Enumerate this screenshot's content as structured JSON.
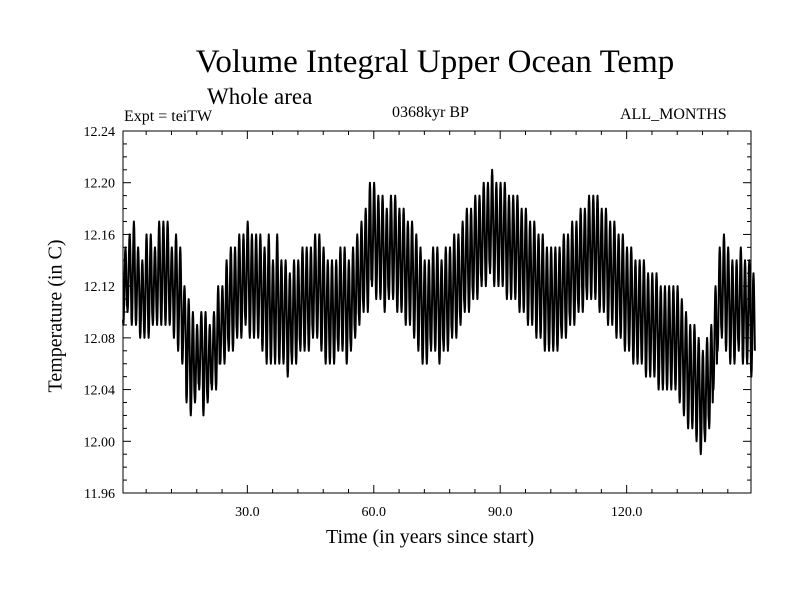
{
  "chart_data": {
    "type": "line",
    "title": "Volume Integral Upper Ocean Temp",
    "subtitle": "Whole area",
    "experiment": "Expt = teiTW",
    "period": "0368kyr BP",
    "months": "ALL_MONTHS",
    "xlabel": "Time (in years since start)",
    "ylabel": "Temperature (in C)",
    "xlim": [
      0.5,
      149.5
    ],
    "ylim": [
      11.96,
      12.24
    ],
    "x_ticks": [
      30,
      60,
      90,
      120
    ],
    "x_tick_labels": [
      "30.0",
      "60.0",
      "90.0",
      "120.0"
    ],
    "y_ticks": [
      11.96,
      12.0,
      12.04,
      12.08,
      12.12,
      12.16,
      12.2,
      12.24
    ],
    "y_tick_labels": [
      "11.96",
      "12.00",
      "12.04",
      "12.08",
      "12.12",
      "12.16",
      "12.20",
      "12.24"
    ],
    "grid": false,
    "series": [
      {
        "name": "Volume integral upper ocean temperature",
        "seasonal_sampling": "monthly",
        "annual_mean": [
          12.12,
          12.13,
          12.13,
          12.12,
          12.11,
          12.12,
          12.12,
          12.12,
          12.13,
          12.13,
          12.13,
          12.12,
          12.12,
          12.11,
          12.09,
          12.07,
          12.06,
          12.06,
          12.07,
          12.06,
          12.06,
          12.07,
          12.08,
          12.09,
          12.1,
          12.11,
          12.11,
          12.12,
          12.12,
          12.13,
          12.12,
          12.12,
          12.12,
          12.11,
          12.11,
          12.1,
          12.11,
          12.1,
          12.1,
          12.09,
          12.1,
          12.1,
          12.11,
          12.11,
          12.11,
          12.12,
          12.12,
          12.11,
          12.1,
          12.1,
          12.1,
          12.11,
          12.11,
          12.1,
          12.11,
          12.12,
          12.13,
          12.14,
          12.15,
          12.16,
          12.15,
          12.15,
          12.14,
          12.15,
          12.15,
          12.14,
          12.14,
          12.13,
          12.13,
          12.12,
          12.11,
          12.1,
          12.1,
          12.11,
          12.11,
          12.1,
          12.11,
          12.11,
          12.12,
          12.12,
          12.13,
          12.14,
          12.14,
          12.15,
          12.15,
          12.16,
          12.16,
          12.17,
          12.16,
          12.16,
          12.16,
          12.15,
          12.15,
          12.15,
          12.14,
          12.14,
          12.13,
          12.13,
          12.12,
          12.12,
          12.11,
          12.11,
          12.11,
          12.11,
          12.12,
          12.12,
          12.13,
          12.13,
          12.14,
          12.14,
          12.15,
          12.15,
          12.15,
          12.14,
          12.14,
          12.13,
          12.13,
          12.12,
          12.12,
          12.11,
          12.11,
          12.1,
          12.1,
          12.1,
          12.09,
          12.09,
          12.09,
          12.08,
          12.08,
          12.08,
          12.08,
          12.08,
          12.07,
          12.06,
          12.05,
          12.05,
          12.04,
          12.03,
          12.04,
          12.05,
          12.08,
          12.11,
          12.12,
          12.11,
          12.1,
          12.1,
          12.11,
          12.1,
          12.1,
          12.09
        ],
        "seasonal_amplitude": [
          0.03,
          0.03,
          0.04,
          0.03,
          0.03,
          0.04,
          0.04,
          0.03,
          0.04,
          0.04,
          0.04,
          0.03,
          0.04,
          0.04,
          0.03,
          0.04,
          0.04,
          0.03,
          0.03,
          0.04,
          0.03,
          0.03,
          0.04,
          0.03,
          0.04,
          0.04,
          0.04,
          0.04,
          0.04,
          0.04,
          0.04,
          0.04,
          0.04,
          0.04,
          0.05,
          0.04,
          0.05,
          0.04,
          0.04,
          0.04,
          0.04,
          0.04,
          0.04,
          0.04,
          0.04,
          0.04,
          0.04,
          0.04,
          0.04,
          0.04,
          0.04,
          0.04,
          0.04,
          0.04,
          0.04,
          0.04,
          0.04,
          0.04,
          0.05,
          0.04,
          0.04,
          0.04,
          0.04,
          0.04,
          0.04,
          0.04,
          0.04,
          0.04,
          0.04,
          0.04,
          0.04,
          0.04,
          0.04,
          0.04,
          0.04,
          0.04,
          0.04,
          0.04,
          0.04,
          0.04,
          0.04,
          0.04,
          0.04,
          0.04,
          0.04,
          0.04,
          0.04,
          0.04,
          0.04,
          0.04,
          0.04,
          0.04,
          0.04,
          0.04,
          0.04,
          0.04,
          0.04,
          0.04,
          0.04,
          0.04,
          0.04,
          0.04,
          0.04,
          0.04,
          0.04,
          0.04,
          0.04,
          0.04,
          0.04,
          0.04,
          0.04,
          0.04,
          0.04,
          0.04,
          0.04,
          0.04,
          0.04,
          0.04,
          0.04,
          0.04,
          0.04,
          0.04,
          0.04,
          0.04,
          0.04,
          0.04,
          0.04,
          0.04,
          0.04,
          0.04,
          0.04,
          0.04,
          0.04,
          0.04,
          0.04,
          0.04,
          0.04,
          0.04,
          0.04,
          0.04,
          0.04,
          0.04,
          0.04,
          0.04,
          0.04,
          0.04,
          0.04,
          0.04,
          0.04,
          0.04
        ]
      }
    ]
  },
  "colors": {
    "line": "#000000",
    "axes": "#000000",
    "background": "#ffffff"
  }
}
